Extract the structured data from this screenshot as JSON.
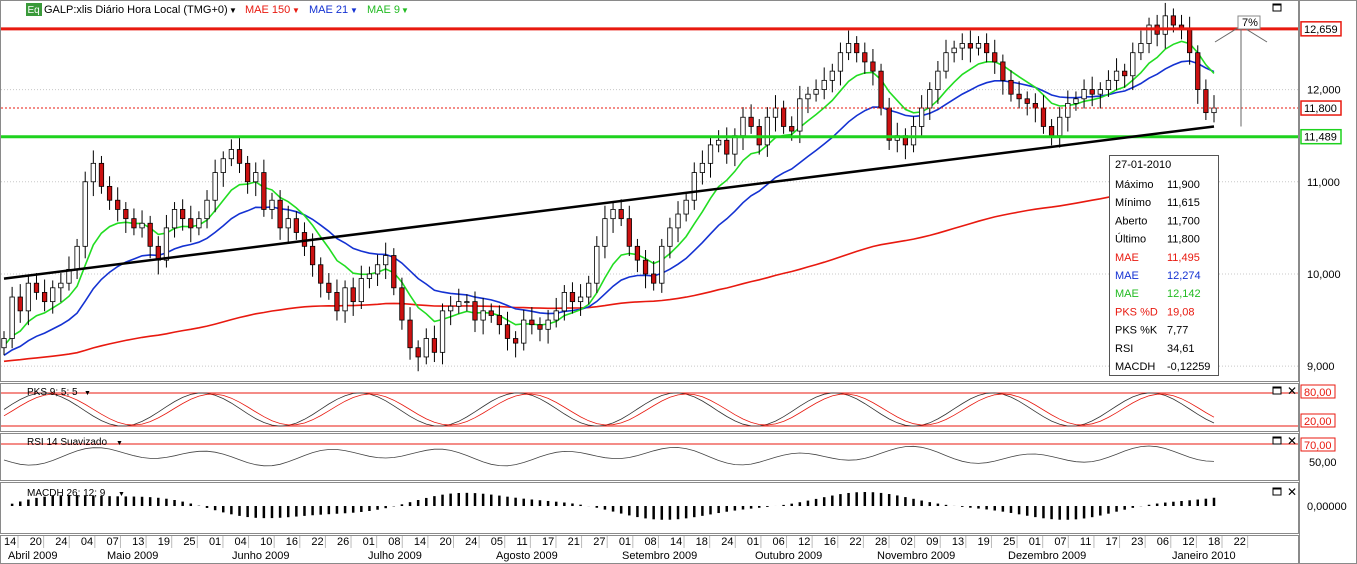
{
  "header": {
    "badge": "Eq",
    "symbol_label": "GALP:xlis Diário Hora Local (TMG+0)",
    "legend": [
      {
        "label": "MAE 150",
        "color": "#e8190f"
      },
      {
        "label": "MAE 21",
        "color": "#1432d2"
      },
      {
        "label": "MAE 9",
        "color": "#22dd22"
      }
    ]
  },
  "colors": {
    "resistance": "#e8190f",
    "support": "#1ed21e",
    "trend": "#000000",
    "ma150": "#e8190f",
    "ma21": "#1432d2",
    "ma9": "#22dd22",
    "up_candle": "#ffffff",
    "down_candle": "#cc1111",
    "grid": "#c8c8c8"
  },
  "price_tags": [
    {
      "label": "12,659",
      "value": 12.659,
      "style": "resistance"
    },
    {
      "label": "11,800",
      "value": 11.8,
      "style": "last"
    },
    {
      "label": "11,489",
      "value": 11.489,
      "style": "support"
    }
  ],
  "annotation": {
    "text": "7%"
  },
  "info_box": {
    "date": "27-01-2010",
    "rows": [
      {
        "label": "Máximo",
        "value": "11,900",
        "color": "#000000"
      },
      {
        "label": "Mínimo",
        "value": "11,615",
        "color": "#000000"
      },
      {
        "label": "Aberto",
        "value": "11,700",
        "color": "#000000"
      },
      {
        "label": "Último",
        "value": "11,800",
        "color": "#000000"
      },
      {
        "label": "MAE",
        "value": "11,495",
        "color": "#e8190f"
      },
      {
        "label": "MAE",
        "value": "12,274",
        "color": "#1432d2"
      },
      {
        "label": "MAE",
        "value": "12,142",
        "color": "#22bb22"
      },
      {
        "label": "PKS %D",
        "value": "19,08",
        "color": "#e8190f"
      },
      {
        "label": "PKS %K",
        "value": "7,77",
        "color": "#000000"
      },
      {
        "label": "RSI",
        "value": "34,61",
        "color": "#000000"
      },
      {
        "label": "MACDH",
        "value": "-0,12259",
        "color": "#000000"
      }
    ]
  },
  "panels": {
    "stoch": {
      "title": "PKS 9; 5; 5",
      "levels": [
        "80,00",
        "20,00"
      ]
    },
    "rsi": {
      "title": "RSI 14 Suavizado",
      "levels": [
        "70,00",
        "50,00"
      ]
    },
    "macd": {
      "title": "MACDH 26; 12; 9",
      "levels": [
        "0,00000"
      ]
    }
  },
  "chart_data": {
    "type": "candlestick",
    "y_axis": {
      "ylim": [
        8.85,
        12.95
      ],
      "ticks": [
        "12,000",
        "11,000",
        "10,000",
        "9,000"
      ],
      "tick_values": [
        12,
        11,
        10,
        9
      ]
    },
    "horizontal_lines": [
      {
        "name": "resistance",
        "value": 12.659
      },
      {
        "name": "last",
        "value": 11.8
      },
      {
        "name": "support",
        "value": 11.489
      }
    ],
    "trendline": {
      "from": [
        0,
        9.95
      ],
      "to": [
        197,
        11.6
      ]
    },
    "projection_pct": "7%",
    "closes": [
      9.3,
      9.75,
      9.6,
      9.9,
      9.8,
      9.7,
      9.85,
      9.9,
      10.05,
      10.3,
      11.0,
      11.2,
      10.95,
      10.8,
      10.7,
      10.6,
      10.5,
      10.55,
      10.3,
      10.15,
      10.5,
      10.7,
      10.6,
      10.5,
      10.6,
      10.8,
      11.1,
      11.25,
      11.35,
      11.2,
      11.0,
      11.1,
      10.7,
      10.8,
      10.5,
      10.6,
      10.45,
      10.3,
      10.1,
      9.9,
      9.8,
      9.6,
      9.85,
      9.7,
      9.95,
      10.0,
      10.1,
      10.2,
      9.85,
      9.5,
      9.2,
      9.1,
      9.3,
      9.15,
      9.6,
      9.65,
      9.7,
      9.7,
      9.5,
      9.6,
      9.55,
      9.45,
      9.3,
      9.25,
      9.5,
      9.45,
      9.4,
      9.5,
      9.6,
      9.8,
      9.7,
      9.75,
      9.9,
      10.3,
      10.6,
      10.7,
      10.6,
      10.3,
      10.15,
      10.0,
      9.9,
      10.3,
      10.5,
      10.65,
      10.8,
      11.1,
      11.2,
      11.4,
      11.45,
      11.3,
      11.5,
      11.7,
      11.6,
      11.4,
      11.7,
      11.8,
      11.6,
      11.55,
      11.9,
      11.95,
      12.0,
      12.1,
      12.2,
      12.4,
      12.5,
      12.4,
      12.3,
      12.2,
      11.8,
      11.45,
      11.5,
      11.4,
      11.6,
      11.8,
      12.0,
      12.2,
      12.4,
      12.45,
      12.5,
      12.45,
      12.5,
      12.4,
      12.3,
      12.1,
      11.95,
      11.9,
      11.85,
      11.8,
      11.6,
      11.5,
      11.7,
      11.85,
      11.9,
      12.0,
      11.95,
      12.0,
      12.1,
      12.2,
      12.15,
      12.4,
      12.5,
      12.7,
      12.6,
      12.8,
      12.7,
      12.65,
      12.4,
      12.0,
      11.75,
      11.8
    ],
    "ma150_end": 11.495,
    "ma21_end": 12.274,
    "ma9_end": 12.142,
    "oscillators": {
      "pks_k": 7.77,
      "pks_d": 19.08,
      "rsi": 34.61,
      "macdh": -0.12259
    },
    "x_axis": {
      "day_labels": [
        "14",
        "20",
        "24",
        "04",
        "07",
        "13",
        "19",
        "25",
        "01",
        "04",
        "10",
        "16",
        "22",
        "26",
        "01",
        "08",
        "14",
        "20",
        "24",
        "05",
        "11",
        "17",
        "21",
        "27",
        "01",
        "08",
        "14",
        "18",
        "24",
        "01",
        "06",
        "12",
        "16",
        "22",
        "28",
        "02",
        "09",
        "13",
        "19",
        "25",
        "01",
        "07",
        "11",
        "17",
        "23",
        "06",
        "12",
        "18",
        "22"
      ],
      "month_labels": [
        "Abril 2009",
        "Maio 2009",
        "Junho 2009",
        "Julho 2009",
        "Agosto 2009",
        "Setembro 2009",
        "Outubro 2009",
        "Novembro 2009",
        "Dezembro 2009",
        "Janeiro 2010"
      ]
    }
  }
}
